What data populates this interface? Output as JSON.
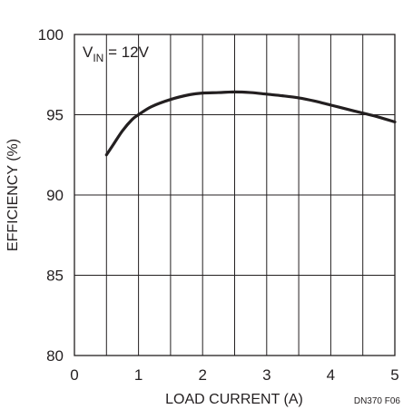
{
  "chart_data": {
    "type": "line",
    "title": "",
    "xlabel": "LOAD CURRENT (A)",
    "ylabel": "EFFICIENCY (%)",
    "xlim": [
      0,
      5
    ],
    "ylim": [
      80,
      100
    ],
    "x_ticks": [
      "0",
      "1",
      "2",
      "3",
      "4",
      "5"
    ],
    "y_ticks": [
      "80",
      "85",
      "90",
      "95",
      "100"
    ],
    "grid": true,
    "annotation": {
      "main": "V",
      "subscript": "IN",
      "rest": " = 12V"
    },
    "figure_id": "DN370 F06",
    "line_color": "#231f20",
    "grid_color": "#231f20",
    "series": [
      {
        "x": [
          0.5,
          0.6,
          0.75,
          0.9,
          1.0,
          1.2,
          1.5,
          1.8,
          2.0,
          2.25,
          2.5,
          2.75,
          3.0,
          3.25,
          3.5,
          3.75,
          4.0,
          4.25,
          4.5,
          4.75,
          5.0
        ],
        "y": [
          92.5,
          93.1,
          94.0,
          94.7,
          95.0,
          95.5,
          95.95,
          96.25,
          96.35,
          96.38,
          96.42,
          96.38,
          96.28,
          96.18,
          96.05,
          95.85,
          95.6,
          95.35,
          95.1,
          94.85,
          94.55
        ]
      }
    ]
  }
}
